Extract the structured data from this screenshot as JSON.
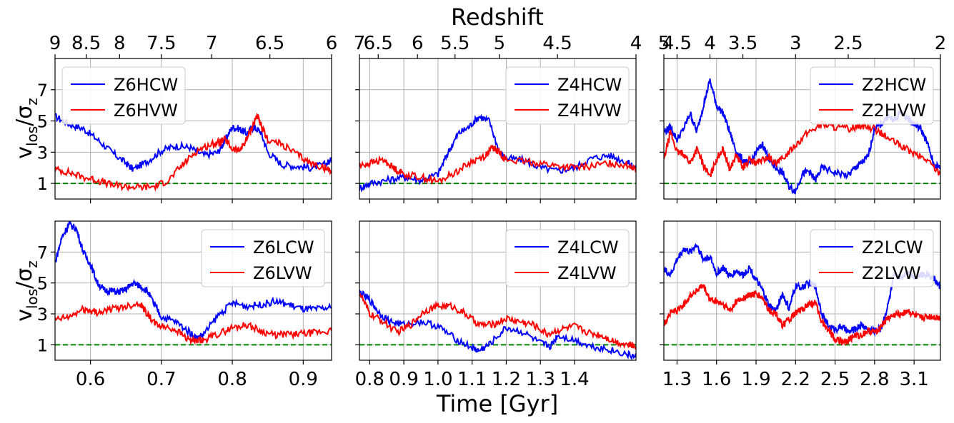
{
  "figure": {
    "top_label": "Redshift",
    "bottom_label": "Time [Gyr]",
    "ylabel_main": "v",
    "ylabel_sub": "los",
    "ylabel_sep": "/σ",
    "ylabel_sub2": "z"
  },
  "colors": {
    "cw": "#0000ff",
    "vw": "#ff0000",
    "ref": "#008000",
    "grid": "#b0b0b0"
  },
  "chart_data": [
    {
      "type": "line",
      "panel": "top-left",
      "xlim": [
        0.55,
        0.94
      ],
      "ylim": [
        0,
        9
      ],
      "yticks": [
        1,
        3,
        5,
        7
      ],
      "yticklabels": [
        "1",
        "3",
        "5",
        "7"
      ],
      "xticks": [
        0.6,
        0.7,
        0.8,
        0.9
      ],
      "xticklabels": [],
      "top_ticks": [
        0.55,
        0.58,
        0.617,
        0.66,
        0.718,
        0.79,
        0.87,
        0.94
      ],
      "top_ticklabels": [
        "9",
        "8.5",
        "8",
        "7.5",
        "7",
        "6.5",
        "6"
      ],
      "top_ticks_used": [
        0.55,
        0.594,
        0.641,
        0.7,
        0.771,
        0.853,
        0.94
      ],
      "legend": {
        "position": "top-left",
        "entries": [
          "Z6HCW",
          "Z6HVW"
        ]
      },
      "hline": 1,
      "series": [
        {
          "name": "Z6HCW",
          "color": "cw",
          "x": [
            0.55,
            0.57,
            0.59,
            0.61,
            0.63,
            0.65,
            0.66,
            0.68,
            0.7,
            0.72,
            0.74,
            0.76,
            0.78,
            0.79,
            0.8,
            0.81,
            0.82,
            0.83,
            0.84,
            0.85,
            0.87,
            0.89,
            0.91,
            0.93,
            0.94
          ],
          "y": [
            5.3,
            4.8,
            4.5,
            3.8,
            3.0,
            2.3,
            1.9,
            2.4,
            3.1,
            3.4,
            3.3,
            2.8,
            3.0,
            3.8,
            4.6,
            4.5,
            4.2,
            4.6,
            4.3,
            3.0,
            2.2,
            2.1,
            2.0,
            2.2,
            2.5
          ]
        },
        {
          "name": "Z6HVW",
          "color": "vw",
          "x": [
            0.55,
            0.57,
            0.59,
            0.61,
            0.63,
            0.65,
            0.67,
            0.69,
            0.71,
            0.73,
            0.75,
            0.77,
            0.78,
            0.79,
            0.8,
            0.81,
            0.82,
            0.83,
            0.835,
            0.84,
            0.85,
            0.87,
            0.89,
            0.91,
            0.93,
            0.94
          ],
          "y": [
            1.9,
            1.7,
            1.4,
            1.2,
            0.9,
            0.8,
            0.75,
            0.8,
            1.2,
            2.2,
            3.1,
            3.5,
            3.6,
            3.8,
            3.2,
            3.1,
            3.8,
            4.8,
            5.4,
            4.7,
            3.8,
            3.5,
            2.9,
            2.3,
            2.0,
            1.8
          ]
        }
      ]
    },
    {
      "type": "line",
      "panel": "top-middle",
      "xlim": [
        0.77,
        1.58
      ],
      "ylim": [
        0,
        9
      ],
      "yticks": [
        1,
        3,
        5,
        7
      ],
      "yticklabels": [],
      "xticks": [
        0.8,
        0.9,
        1.0,
        1.1,
        1.2,
        1.3,
        1.4
      ],
      "xticklabels": [],
      "top_ticks": [
        0.77,
        0.825,
        0.94,
        1.05,
        1.18,
        1.35,
        1.58
      ],
      "top_ticklabels": [
        "7",
        "6.5",
        "6",
        "5.5",
        "5",
        "4.5",
        "4"
      ],
      "legend": {
        "position": "top-right",
        "entries": [
          "Z4HCW",
          "Z4HVW"
        ]
      },
      "hline": 1,
      "series": [
        {
          "name": "Z4HCW",
          "color": "cw",
          "x": [
            0.77,
            0.8,
            0.85,
            0.9,
            0.95,
            1.0,
            1.03,
            1.06,
            1.09,
            1.12,
            1.15,
            1.18,
            1.2,
            1.25,
            1.3,
            1.35,
            1.4,
            1.45,
            1.5,
            1.55,
            1.58
          ],
          "y": [
            0.7,
            1.0,
            1.2,
            1.4,
            1.2,
            1.6,
            3.0,
            4.2,
            4.6,
            5.3,
            5.0,
            3.0,
            2.6,
            2.5,
            2.0,
            1.8,
            2.0,
            2.6,
            2.8,
            2.4,
            2.0
          ]
        },
        {
          "name": "Z4HVW",
          "color": "vw",
          "x": [
            0.77,
            0.8,
            0.84,
            0.87,
            0.9,
            0.95,
            1.0,
            1.05,
            1.1,
            1.14,
            1.16,
            1.18,
            1.2,
            1.25,
            1.3,
            1.35,
            1.4,
            1.45,
            1.5,
            1.55,
            1.58
          ],
          "y": [
            2.1,
            2.3,
            2.5,
            2.0,
            1.6,
            1.4,
            1.1,
            1.7,
            2.4,
            2.8,
            3.3,
            3.0,
            2.5,
            2.4,
            2.3,
            2.1,
            2.0,
            2.1,
            2.3,
            2.2,
            2.0
          ]
        }
      ]
    },
    {
      "type": "line",
      "panel": "top-right",
      "xlim": [
        1.2,
        3.3
      ],
      "ylim": [
        0,
        9
      ],
      "yticks": [
        1,
        3,
        5,
        7
      ],
      "yticklabels": [],
      "xticks": [
        1.3,
        1.6,
        1.9,
        2.2,
        2.5,
        2.8,
        3.1
      ],
      "xticklabels": [],
      "top_ticks": [
        1.2,
        1.3,
        1.55,
        1.8,
        2.2,
        2.6,
        3.3
      ],
      "top_ticklabels": [
        "5",
        "4.5",
        "4",
        "3.5",
        "3",
        "2.5",
        "2"
      ],
      "legend": {
        "position": "top-right",
        "entries": [
          "Z2HCW",
          "Z2HVW"
        ]
      },
      "hline": 1,
      "series": [
        {
          "name": "Z2HCW",
          "color": "cw",
          "x": [
            1.2,
            1.25,
            1.3,
            1.35,
            1.4,
            1.45,
            1.5,
            1.55,
            1.6,
            1.65,
            1.7,
            1.75,
            1.8,
            1.85,
            1.9,
            1.95,
            2.0,
            2.05,
            2.1,
            2.15,
            2.2,
            2.25,
            2.3,
            2.35,
            2.4,
            2.5,
            2.6,
            2.65,
            2.7,
            2.75,
            2.8,
            2.85,
            2.9,
            2.95,
            3.0,
            3.05,
            3.1,
            3.15,
            3.2,
            3.25,
            3.3
          ],
          "y": [
            4.3,
            4.6,
            3.8,
            4.5,
            5.5,
            4.3,
            6.0,
            7.6,
            6.0,
            5.5,
            4.3,
            3.0,
            2.5,
            2.2,
            3.0,
            3.5,
            2.5,
            2.0,
            1.7,
            0.8,
            0.5,
            1.6,
            1.8,
            1.2,
            2.0,
            1.7,
            1.5,
            2.0,
            2.3,
            2.7,
            4.5,
            4.8,
            5.3,
            5.0,
            5.6,
            5.2,
            4.8,
            4.5,
            3.6,
            2.2,
            2.0
          ]
        },
        {
          "name": "Z2HVW",
          "color": "vw",
          "x": [
            1.2,
            1.25,
            1.3,
            1.35,
            1.4,
            1.45,
            1.5,
            1.55,
            1.6,
            1.65,
            1.7,
            1.75,
            1.8,
            1.85,
            1.9,
            1.95,
            2.0,
            2.05,
            2.1,
            2.2,
            2.3,
            2.4,
            2.5,
            2.6,
            2.7,
            2.8,
            2.9,
            3.0,
            3.1,
            3.2,
            3.3
          ],
          "y": [
            2.5,
            4.3,
            3.0,
            2.9,
            2.3,
            3.2,
            2.2,
            1.4,
            2.6,
            3.2,
            1.9,
            2.8,
            2.0,
            2.5,
            2.3,
            2.5,
            2.7,
            2.2,
            2.6,
            3.5,
            4.3,
            4.8,
            4.6,
            4.5,
            4.7,
            4.5,
            3.9,
            3.4,
            2.9,
            2.5,
            1.6
          ]
        }
      ]
    },
    {
      "type": "line",
      "panel": "bottom-left",
      "xlim": [
        0.55,
        0.94
      ],
      "ylim": [
        0,
        9
      ],
      "yticks": [
        1,
        3,
        5,
        7
      ],
      "yticklabels": [
        "1",
        "3",
        "5",
        "7"
      ],
      "xticks": [
        0.6,
        0.7,
        0.8,
        0.9
      ],
      "xticklabels": [
        "0.6",
        "0.7",
        "0.8",
        "0.9"
      ],
      "legend": {
        "position": "top-right",
        "entries": [
          "Z6LCW",
          "Z6LVW"
        ]
      },
      "hline": 1,
      "series": [
        {
          "name": "Z6LCW",
          "color": "cw",
          "x": [
            0.55,
            0.56,
            0.57,
            0.58,
            0.59,
            0.6,
            0.61,
            0.62,
            0.63,
            0.64,
            0.65,
            0.66,
            0.67,
            0.68,
            0.69,
            0.7,
            0.72,
            0.74,
            0.75,
            0.76,
            0.78,
            0.8,
            0.82,
            0.84,
            0.86,
            0.88,
            0.9,
            0.92,
            0.94
          ],
          "y": [
            6.3,
            8.0,
            8.8,
            8.5,
            7.0,
            6.2,
            5.0,
            4.5,
            4.5,
            4.4,
            4.6,
            5.0,
            4.8,
            4.5,
            3.6,
            2.8,
            2.5,
            1.8,
            1.4,
            1.7,
            2.9,
            3.7,
            3.5,
            3.6,
            3.8,
            3.6,
            3.3,
            3.3,
            3.4
          ]
        },
        {
          "name": "Z6LVW",
          "color": "vw",
          "x": [
            0.55,
            0.57,
            0.59,
            0.6,
            0.61,
            0.63,
            0.65,
            0.67,
            0.68,
            0.69,
            0.7,
            0.72,
            0.74,
            0.75,
            0.76,
            0.78,
            0.8,
            0.82,
            0.84,
            0.86,
            0.88,
            0.9,
            0.92,
            0.94
          ],
          "y": [
            2.6,
            2.8,
            3.3,
            3.2,
            3.1,
            3.3,
            3.5,
            3.7,
            3.0,
            2.4,
            2.2,
            2.0,
            1.3,
            1.2,
            1.3,
            1.7,
            2.1,
            2.3,
            1.9,
            1.6,
            1.7,
            1.7,
            1.8,
            1.9
          ]
        }
      ]
    },
    {
      "type": "line",
      "panel": "bottom-middle",
      "xlim": [
        0.77,
        1.58
      ],
      "ylim": [
        0,
        9
      ],
      "yticks": [
        1,
        3,
        5,
        7
      ],
      "yticklabels": [],
      "xticks": [
        0.8,
        0.9,
        1.0,
        1.1,
        1.2,
        1.3,
        1.4
      ],
      "xticklabels": [
        "0.8",
        "0.9",
        "1.0",
        "1.1",
        "1.2",
        "1.3",
        "1.4"
      ],
      "legend": {
        "position": "top-right",
        "entries": [
          "Z4LCW",
          "Z4LVW"
        ]
      },
      "hline": 1,
      "series": [
        {
          "name": "Z4LCW",
          "color": "cw",
          "x": [
            0.77,
            0.8,
            0.83,
            0.86,
            0.9,
            0.95,
            1.0,
            1.05,
            1.1,
            1.12,
            1.15,
            1.2,
            1.25,
            1.3,
            1.33,
            1.35,
            1.4,
            1.45,
            1.5,
            1.55,
            1.58
          ],
          "y": [
            4.4,
            3.9,
            3.0,
            2.5,
            2.3,
            2.5,
            2.2,
            1.4,
            0.8,
            0.6,
            1.0,
            2.1,
            1.8,
            1.1,
            0.9,
            1.6,
            1.3,
            0.9,
            0.7,
            0.4,
            0.2
          ]
        },
        {
          "name": "Z4LVW",
          "color": "vw",
          "x": [
            0.77,
            0.8,
            0.84,
            0.88,
            0.92,
            0.96,
            1.0,
            1.04,
            1.08,
            1.12,
            1.16,
            1.2,
            1.24,
            1.28,
            1.32,
            1.36,
            1.4,
            1.44,
            1.48,
            1.52,
            1.56,
            1.58
          ],
          "y": [
            4.4,
            3.0,
            2.5,
            1.8,
            2.3,
            3.2,
            3.5,
            3.5,
            3.0,
            2.3,
            2.3,
            2.7,
            2.5,
            2.3,
            1.7,
            2.0,
            2.2,
            1.8,
            1.6,
            1.2,
            1.0,
            0.9
          ]
        }
      ]
    },
    {
      "type": "line",
      "panel": "bottom-right",
      "xlim": [
        1.2,
        3.3
      ],
      "ylim": [
        0,
        9
      ],
      "yticks": [
        1,
        3,
        5,
        7
      ],
      "yticklabels": [],
      "xticks": [
        1.3,
        1.6,
        1.9,
        2.2,
        2.5,
        2.8,
        3.1
      ],
      "xticklabels": [
        "1.3",
        "1.6",
        "1.9",
        "2.2",
        "2.5",
        "2.8",
        "3.1"
      ],
      "legend": {
        "position": "top-right",
        "entries": [
          "Z2LCW",
          "Z2LVW"
        ]
      },
      "hline": 1,
      "series": [
        {
          "name": "Z2LCW",
          "color": "cw",
          "x": [
            1.2,
            1.25,
            1.3,
            1.35,
            1.4,
            1.45,
            1.5,
            1.55,
            1.6,
            1.65,
            1.7,
            1.75,
            1.8,
            1.85,
            1.9,
            1.95,
            2.0,
            2.05,
            2.1,
            2.15,
            2.2,
            2.25,
            2.3,
            2.35,
            2.4,
            2.45,
            2.5,
            2.55,
            2.6,
            2.65,
            2.7,
            2.75,
            2.8,
            2.85,
            2.9,
            2.95,
            3.0,
            3.05,
            3.1,
            3.15,
            3.2,
            3.25,
            3.3
          ],
          "y": [
            5.9,
            5.5,
            6.5,
            7.2,
            7.0,
            7.5,
            6.5,
            6.7,
            5.6,
            6.0,
            5.4,
            5.8,
            5.5,
            6.0,
            5.2,
            4.5,
            3.5,
            3.2,
            4.3,
            3.3,
            4.8,
            4.7,
            5.0,
            4.8,
            3.0,
            2.2,
            2.0,
            2.2,
            1.8,
            2.0,
            2.3,
            2.0,
            1.9,
            2.1,
            3.5,
            5.5,
            5.3,
            5.8,
            5.4,
            5.5,
            5.6,
            5.3,
            4.7
          ]
        },
        {
          "name": "Z2LVW",
          "color": "vw",
          "x": [
            1.2,
            1.25,
            1.3,
            1.35,
            1.4,
            1.45,
            1.5,
            1.55,
            1.6,
            1.65,
            1.7,
            1.75,
            1.8,
            1.85,
            1.9,
            1.95,
            2.0,
            2.05,
            2.1,
            2.15,
            2.2,
            2.25,
            2.3,
            2.35,
            2.4,
            2.45,
            2.5,
            2.55,
            2.6,
            2.65,
            2.7,
            2.75,
            2.8,
            2.85,
            2.9,
            2.95,
            3.0,
            3.05,
            3.1,
            3.15,
            3.2,
            3.25,
            3.3
          ],
          "y": [
            2.3,
            3.1,
            3.2,
            3.6,
            4.2,
            4.5,
            4.8,
            3.9,
            3.8,
            3.6,
            3.2,
            3.8,
            4.0,
            4.2,
            4.3,
            4.0,
            3.2,
            3.0,
            2.3,
            2.6,
            3.0,
            3.3,
            3.6,
            3.7,
            2.5,
            2.0,
            1.4,
            1.2,
            1.3,
            1.6,
            1.6,
            1.9,
            1.8,
            2.2,
            2.7,
            2.9,
            3.0,
            3.2,
            2.9,
            2.7,
            2.8,
            2.8,
            2.7
          ]
        }
      ]
    }
  ]
}
